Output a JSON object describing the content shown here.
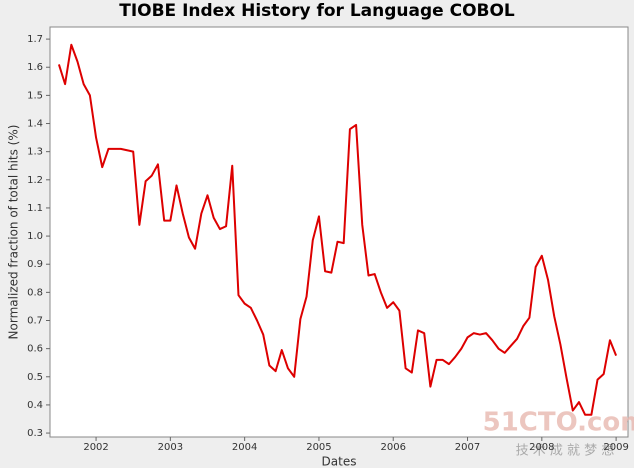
{
  "chart_data": {
    "type": "line",
    "title": "TIOBE Index History for Language COBOL",
    "x_label": "Dates",
    "y_label": "Normalized fraction of total hits (%)",
    "watermark": "51CTO.com",
    "watermark_subtitle": "技 术 成 就 梦 想",
    "xlim": [
      2001.38,
      2009.16
    ],
    "xticks": [
      2002,
      2003,
      2004,
      2005,
      2006,
      2007,
      2008,
      2009
    ],
    "ylim": [
      0.286,
      1.743
    ],
    "yticks": [
      0.3,
      0.4,
      0.5,
      0.6,
      0.7,
      0.8,
      0.9,
      {
        "value": 1,
        "label": "1.0"
      },
      1.1,
      1.2,
      1.3,
      1.4,
      1.5,
      1.6,
      1.7
    ],
    "grid": false,
    "x": [
      2001.5,
      2001.583,
      2001.667,
      2001.75,
      2001.833,
      2001.917,
      2002.0,
      2002.083,
      2002.167,
      2002.25,
      2002.333,
      2002.417,
      2002.5,
      2002.583,
      2002.667,
      2002.75,
      2002.833,
      2002.917,
      2003.0,
      2003.083,
      2003.167,
      2003.25,
      2003.333,
      2003.417,
      2003.5,
      2003.583,
      2003.667,
      2003.75,
      2003.833,
      2003.917,
      2004.0,
      2004.083,
      2004.167,
      2004.25,
      2004.333,
      2004.417,
      2004.5,
      2004.583,
      2004.667,
      2004.75,
      2004.833,
      2004.917,
      2005.0,
      2005.083,
      2005.167,
      2005.25,
      2005.333,
      2005.417,
      2005.5,
      2005.583,
      2005.667,
      2005.75,
      2005.833,
      2005.917,
      2006.0,
      2006.083,
      2006.167,
      2006.25,
      2006.333,
      2006.417,
      2006.5,
      2006.583,
      2006.667,
      2006.75,
      2006.833,
      2006.917,
      2007.0,
      2007.083,
      2007.167,
      2007.25,
      2007.333,
      2007.417,
      2007.5,
      2007.583,
      2007.667,
      2007.75,
      2007.833,
      2007.917,
      2008.0,
      2008.083,
      2008.167,
      2008.25,
      2008.333,
      2008.417,
      2008.5,
      2008.583,
      2008.667,
      2008.75,
      2008.833,
      2008.917,
      2009.0
    ],
    "series": [
      {
        "name": "COBOL",
        "color": "#dd0000",
        "values": [
          1.61,
          1.54,
          1.68,
          1.62,
          1.54,
          1.5,
          1.35,
          1.245,
          1.31,
          1.31,
          1.31,
          1.305,
          1.3,
          1.04,
          1.195,
          1.215,
          1.255,
          1.055,
          1.055,
          1.18,
          1.08,
          0.995,
          0.955,
          1.08,
          1.145,
          1.065,
          1.025,
          1.035,
          1.25,
          0.79,
          0.76,
          0.745,
          0.7,
          0.65,
          0.54,
          0.52,
          0.595,
          0.53,
          0.5,
          0.705,
          0.785,
          0.985,
          1.07,
          0.875,
          0.87,
          0.98,
          0.975,
          1.38,
          1.395,
          1.04,
          0.86,
          0.865,
          0.8,
          0.745,
          0.765,
          0.735,
          0.53,
          0.515,
          0.665,
          0.655,
          0.465,
          0.56,
          0.56,
          0.545,
          0.57,
          0.6,
          0.64,
          0.655,
          0.65,
          0.655,
          0.63,
          0.6,
          0.585,
          0.61,
          0.635,
          0.68,
          0.71,
          0.89,
          0.93,
          0.845,
          0.715,
          0.615,
          0.495,
          0.38,
          0.41,
          0.365,
          0.365,
          0.49,
          0.51,
          0.63,
          0.575
        ]
      }
    ]
  }
}
